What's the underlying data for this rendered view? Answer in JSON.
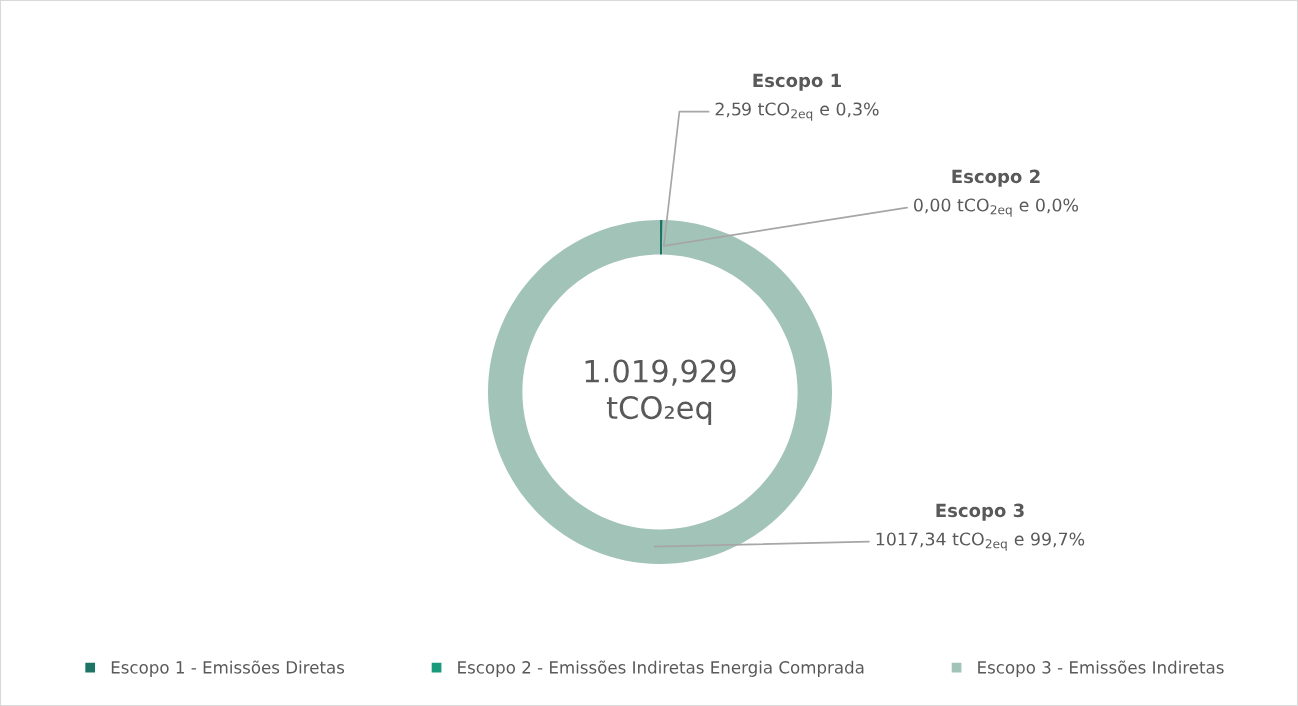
{
  "chart_data": {
    "type": "donut",
    "categories": [
      "Escopo 1 - Emissões Diretas",
      "Escopo 2 - Emissões Indiretas Energia Comprada",
      "Escopo 3 - Emissões Indiretas"
    ],
    "values": [
      2.59,
      0.0,
      1017.34
    ],
    "colors": [
      "#1e7464",
      "#1a9a7c",
      "#a2c4b8"
    ],
    "value_labels": [
      "Escopo 1\n2,59 tCO$_{2eq}$ e 0,3%",
      "Escopo 2\n0,00 tCO$_{2eq}$ e 0,0%",
      "Escopo 3\n1017,34 tCO$_{2eq}$ e 99,7%"
    ],
    "annotations": [
      "1.019,929\ntCO₂eq"
    ],
    "legend": "bottom"
  }
}
